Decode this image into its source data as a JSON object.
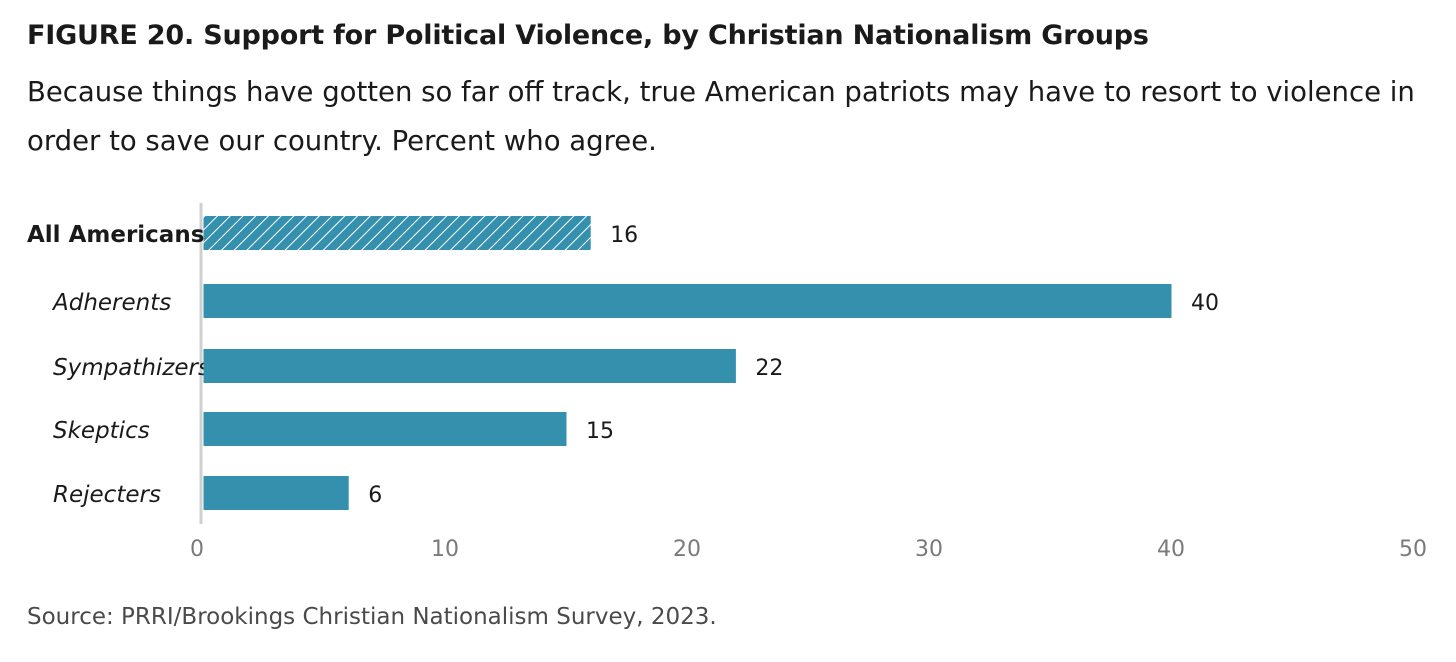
{
  "header": {
    "title": "FIGURE 20. Support for Political Violence, by Christian Nationalism Groups",
    "subtitle": "Because things have gotten so far off track, true American patriots may have to resort to violence in order to save our country. Percent who agree."
  },
  "footer": {
    "source": "Source: PRRI/Brookings Christian Nationalism Survey, 2023."
  },
  "chart_data": {
    "type": "bar",
    "orientation": "horizontal",
    "title": "FIGURE 20. Support for Political Violence, by Christian Nationalism Groups",
    "subtitle": "Because things have gotten so far off track, true American patriots may have to resort to violence in order to save our country. Percent who agree.",
    "categories": [
      "All Americans",
      "Adherents",
      "Sympathizers",
      "Skeptics",
      "Rejecters"
    ],
    "values": [
      16,
      40,
      22,
      15,
      6
    ],
    "category_styles": [
      "bold",
      "italic",
      "italic",
      "italic",
      "italic"
    ],
    "bar_patterns": [
      "hatched",
      "solid",
      "solid",
      "solid",
      "solid"
    ],
    "xlim": [
      0,
      50
    ],
    "xticks": [
      0,
      10,
      20,
      30,
      40,
      50
    ],
    "xlabel": "",
    "ylabel": "",
    "grid": false,
    "colors": {
      "bar": "#3590ad",
      "hatch_line": "#ffffff",
      "axis": "#d0d0d0",
      "tick_label": "#7a7a7a"
    }
  }
}
